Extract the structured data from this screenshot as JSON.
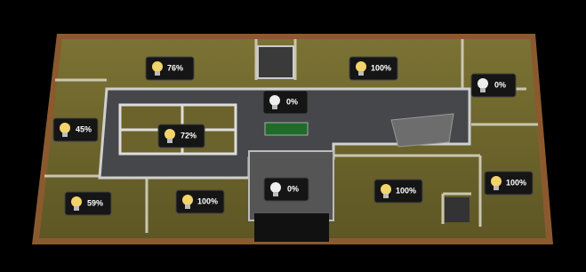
{
  "rooms": [
    {
      "label": "76%"
    },
    {
      "label": "100%"
    },
    {
      "label": "0%"
    },
    {
      "label": "0%"
    },
    {
      "label": "45%"
    },
    {
      "label": "72%"
    },
    {
      "label": "100%"
    },
    {
      "label": "100%"
    },
    {
      "label": "0%"
    },
    {
      "label": "59%"
    },
    {
      "label": "100%"
    }
  ]
}
